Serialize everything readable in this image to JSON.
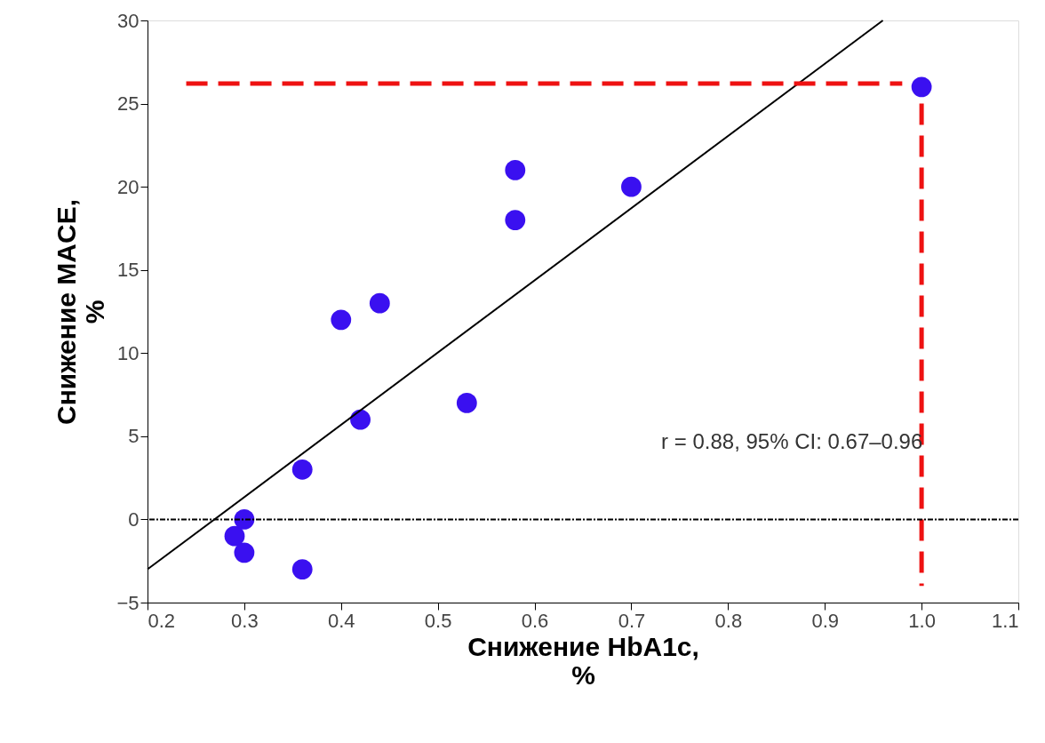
{
  "chart_data": {
    "type": "scatter",
    "xlabel": "Снижение HbA1c,\n%",
    "ylabel": "Снижение MACE,\n%",
    "xlim": [
      0.2,
      1.1
    ],
    "xticks": [
      0.2,
      0.3,
      0.4,
      0.5,
      0.6,
      0.7,
      0.8,
      0.9,
      {
        "value": 1.0,
        "label": "1.0"
      },
      1.1
    ],
    "ylim": [
      -5,
      30
    ],
    "yticks": [
      {
        "value": -5,
        "label": "−5"
      },
      0,
      5,
      10,
      15,
      20,
      25,
      30
    ],
    "grid": false,
    "series": [
      {
        "marker": "circle",
        "color": "#3a10f0",
        "x": [
          0.29,
          0.3,
          0.3,
          0.36,
          0.36,
          0.4,
          0.42,
          0.44,
          0.53,
          0.58,
          0.58,
          0.7,
          1.0
        ],
        "values": [
          -1,
          0,
          -2,
          3,
          -3,
          12,
          6,
          13,
          7,
          21,
          18,
          20,
          26
        ]
      },
      {
        "type": "line",
        "color": "#000000",
        "line_style": "solid",
        "x": [
          0.2,
          0.96
        ],
        "values": [
          -3,
          30
        ]
      },
      {
        "type": "line",
        "color": "#ee1111",
        "line_style": "dashed",
        "x": [
          0.24,
          0.98
        ],
        "values": [
          26.2,
          26.2
        ]
      },
      {
        "type": "line",
        "color": "#ee1111",
        "line_style": "dashed",
        "x": [
          1.0,
          1.0
        ],
        "values": [
          25,
          -4
        ]
      }
    ],
    "ref_lines": [
      {
        "axis": "y",
        "value": 0,
        "color": "#000000",
        "line_style": "dotted"
      }
    ],
    "annotations": [
      "r = 0.88, 95% CI: 0.67–0.96"
    ]
  }
}
